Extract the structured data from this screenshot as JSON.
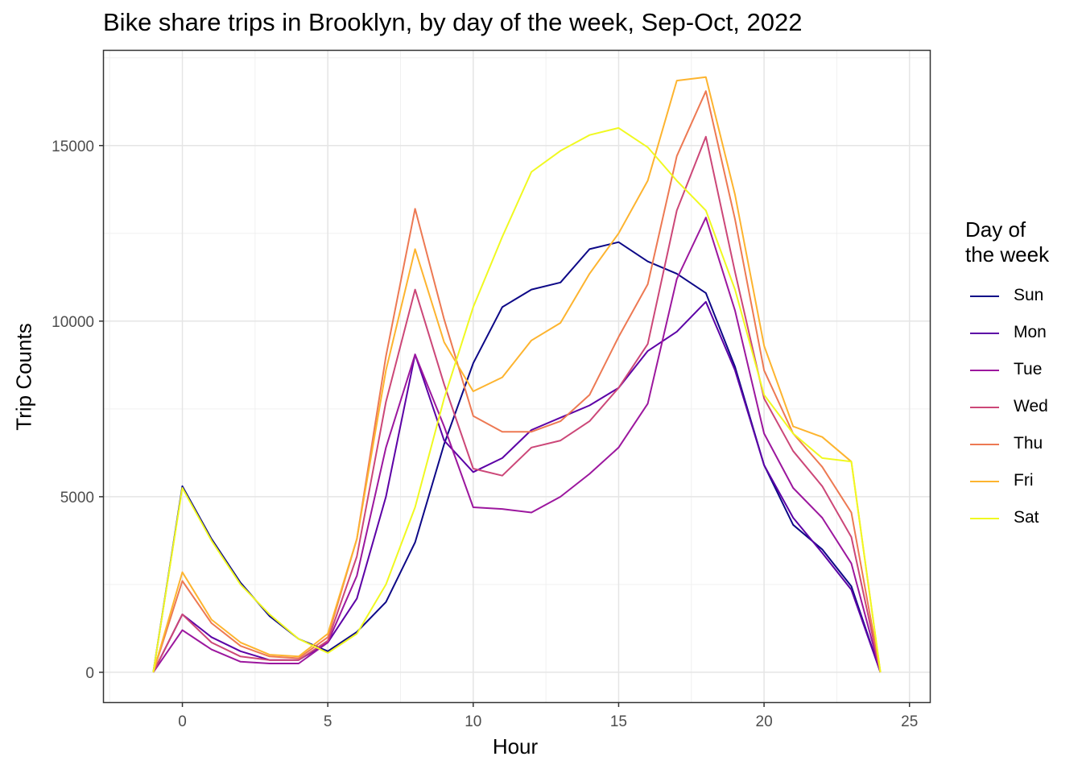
{
  "chart_data": {
    "type": "line",
    "title": "Bike share trips in Brooklyn, by day of the week, Sep-Oct, 2022",
    "xlabel": "Hour",
    "ylabel": "Trip Counts",
    "xlim": [
      -2.7,
      25.7
    ],
    "ylim": [
      -850,
      17700
    ],
    "x_ticks": [
      0,
      5,
      10,
      15,
      20,
      25
    ],
    "y_ticks": [
      0,
      5000,
      10000,
      15000
    ],
    "grid": true,
    "legend_title": "Day of\nthe week",
    "legend_title_lines": [
      "Day of",
      "the week"
    ],
    "legend_position": "right",
    "x": [
      -1,
      0,
      1,
      2,
      3,
      4,
      5,
      6,
      7,
      8,
      9,
      10,
      11,
      12,
      13,
      14,
      15,
      16,
      17,
      18,
      19,
      20,
      21,
      22,
      23,
      24
    ],
    "series": [
      {
        "name": "Sun",
        "color": "#0d0887",
        "values": [
          0,
          5300,
          3800,
          2550,
          1600,
          950,
          600,
          1150,
          2000,
          3700,
          6500,
          8800,
          10400,
          10900,
          11100,
          12050,
          12250,
          11700,
          11350,
          10800,
          8700,
          5900,
          4200,
          3500,
          2450,
          0
        ]
      },
      {
        "name": "Mon",
        "color": "#5c01a6",
        "values": [
          0,
          1650,
          1000,
          600,
          350,
          350,
          850,
          2100,
          5000,
          9050,
          6600,
          5700,
          6100,
          6900,
          7250,
          7600,
          8100,
          9150,
          9700,
          10550,
          8600,
          5900,
          4400,
          3400,
          2350,
          0
        ]
      },
      {
        "name": "Tue",
        "color": "#9c179e",
        "values": [
          0,
          1200,
          650,
          300,
          250,
          250,
          850,
          2750,
          6400,
          9050,
          7000,
          4700,
          4650,
          4550,
          5000,
          5650,
          6400,
          7650,
          11200,
          12950,
          10300,
          6800,
          5250,
          4400,
          3100,
          0
        ]
      },
      {
        "name": "Wed",
        "color": "#cc4778",
        "values": [
          0,
          1650,
          850,
          450,
          350,
          350,
          900,
          3300,
          7700,
          10900,
          8200,
          5800,
          5600,
          6400,
          6600,
          7150,
          8100,
          9350,
          13150,
          15250,
          11400,
          7800,
          6300,
          5300,
          3850,
          0
        ]
      },
      {
        "name": "Thu",
        "color": "#ed7953",
        "values": [
          0,
          2600,
          1400,
          750,
          450,
          400,
          1000,
          3800,
          9000,
          13200,
          10050,
          7300,
          6850,
          6850,
          7150,
          7900,
          9550,
          11050,
          14700,
          16550,
          12900,
          8600,
          6800,
          5850,
          4550,
          0
        ]
      },
      {
        "name": "Fri",
        "color": "#fdb42f",
        "values": [
          0,
          2850,
          1500,
          850,
          500,
          450,
          1100,
          3800,
          8600,
          12050,
          9400,
          8000,
          8400,
          9450,
          9950,
          11350,
          12500,
          14000,
          16850,
          16950,
          13600,
          9300,
          7000,
          6700,
          6000,
          0
        ]
      },
      {
        "name": "Sat",
        "color": "#f0f921",
        "values": [
          0,
          5250,
          3750,
          2500,
          1650,
          950,
          550,
          1100,
          2500,
          4700,
          7800,
          10400,
          12400,
          14250,
          14850,
          15300,
          15500,
          14950,
          14000,
          13150,
          10900,
          7900,
          6800,
          6100,
          6000,
          0
        ]
      }
    ]
  }
}
